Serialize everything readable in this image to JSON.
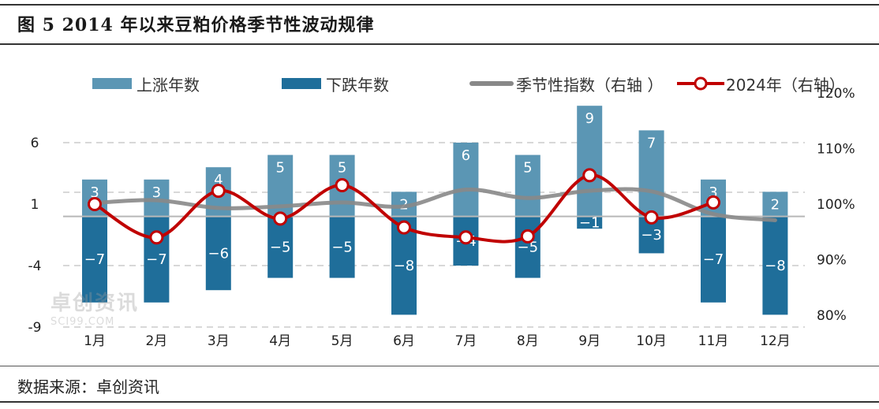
{
  "header": {
    "title": "图 5 2014 年以来豆粕价格季节性波动规律"
  },
  "footer": {
    "source": "数据来源：卓创资讯"
  },
  "watermark": {
    "brand": "卓创资讯",
    "site": "SCI99.COM"
  },
  "colors": {
    "up_bar": "#5b96b4",
    "down_bar": "#1f6e9a",
    "seasonal_line": "#888888",
    "line_2024": "#c00000",
    "grid": "#cccccc"
  },
  "chart_data": {
    "type": "bar+line",
    "categories": [
      "1月",
      "2月",
      "3月",
      "4月",
      "5月",
      "6月",
      "7月",
      "8月",
      "9月",
      "10月",
      "11月",
      "12月"
    ],
    "series": [
      {
        "name": "上涨年数",
        "axis": "left",
        "kind": "bar",
        "values": [
          3,
          3,
          4,
          5,
          5,
          2,
          6,
          5,
          9,
          7,
          3,
          2
        ]
      },
      {
        "name": "下跌年数",
        "axis": "left",
        "kind": "bar",
        "values": [
          -7,
          -7,
          -6,
          -5,
          -5,
          -8,
          -4,
          -5,
          -1,
          -3,
          -7,
          -8
        ]
      },
      {
        "name": "季节性指数（右轴 ）",
        "axis": "right",
        "kind": "line",
        "values": [
          100.2,
          100.7,
          99.3,
          99.6,
          100.3,
          99.6,
          102.6,
          101.1,
          102.4,
          102.3,
          98.2,
          97.1
        ]
      },
      {
        "name": "2024年（右轴）",
        "axis": "right",
        "kind": "line-marker",
        "values": [
          100.0,
          94.0,
          102.4,
          97.4,
          103.4,
          95.8,
          94.0,
          94.2,
          105.2,
          97.6,
          100.3,
          null
        ]
      }
    ],
    "y_left": {
      "ticks": [
        "6",
        "1",
        "-4",
        "-9"
      ],
      "tick_values": [
        6,
        1,
        -4,
        -9
      ],
      "range": [
        -9,
        9
      ]
    },
    "y_right": {
      "ticks": [
        "120%",
        "110%",
        "100%",
        "90%",
        "80%"
      ],
      "tick_values": [
        120,
        110,
        100,
        90,
        80
      ],
      "range": [
        80,
        120
      ]
    },
    "grid": true,
    "legend_position": "top"
  }
}
